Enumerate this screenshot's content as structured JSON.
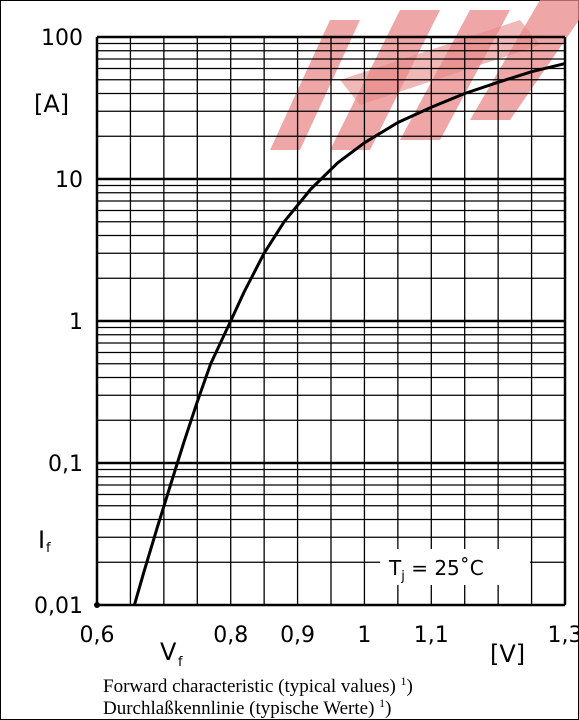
{
  "chart_data": {
    "type": "line",
    "title": "",
    "x_scale": "linear",
    "y_scale": "log",
    "xlim": [
      0.6,
      1.3
    ],
    "ylim": [
      0.01,
      100
    ],
    "x_ticks": [
      {
        "value": 0.6,
        "label": "0,6"
      },
      {
        "value": 0.8,
        "label": "0,8"
      },
      {
        "value": 0.9,
        "label": "0,9"
      },
      {
        "value": 1.0,
        "label": "1"
      },
      {
        "value": 1.1,
        "label": "1,1"
      },
      {
        "value": 1.3,
        "label": "1,3"
      }
    ],
    "y_ticks": [
      {
        "value": 0.01,
        "label": "0,01"
      },
      {
        "value": 0.1,
        "label": "0,1"
      },
      {
        "value": 1,
        "label": "1"
      },
      {
        "value": 10,
        "label": "10"
      },
      {
        "value": 100,
        "label": "100"
      }
    ],
    "xlabel": "V",
    "xlabel_sub": "f",
    "xunit": "[V]",
    "ylabel": "I",
    "ylabel_sub": "f",
    "yunit": "[A]",
    "annotation": {
      "main": "T",
      "sub": "j",
      "rest": " = 25˚C"
    },
    "grid": true,
    "series": [
      {
        "x": [
          0.656,
          0.67,
          0.69,
          0.71,
          0.73,
          0.75,
          0.77,
          0.8,
          0.82,
          0.85,
          0.88,
          0.92,
          0.96,
          1.0,
          1.05,
          1.1,
          1.15,
          1.2,
          1.25,
          1.3
        ],
        "y": [
          0.01,
          0.017,
          0.035,
          0.07,
          0.14,
          0.27,
          0.5,
          1.0,
          1.6,
          3.0,
          5.0,
          8.5,
          13.0,
          18.0,
          25.0,
          32.0,
          40.0,
          48.0,
          57.0,
          65.0
        ]
      }
    ],
    "origin_marker": {
      "x": 0.6,
      "y": 0.01
    }
  },
  "caption": {
    "line1": "Forward characteristic (typical values) ",
    "line1_sup": "1",
    "line1_end": ")",
    "line2": "Durchlaßkennlinie (typische Werte) ",
    "line2_sup": "1",
    "line2_end": ")"
  }
}
